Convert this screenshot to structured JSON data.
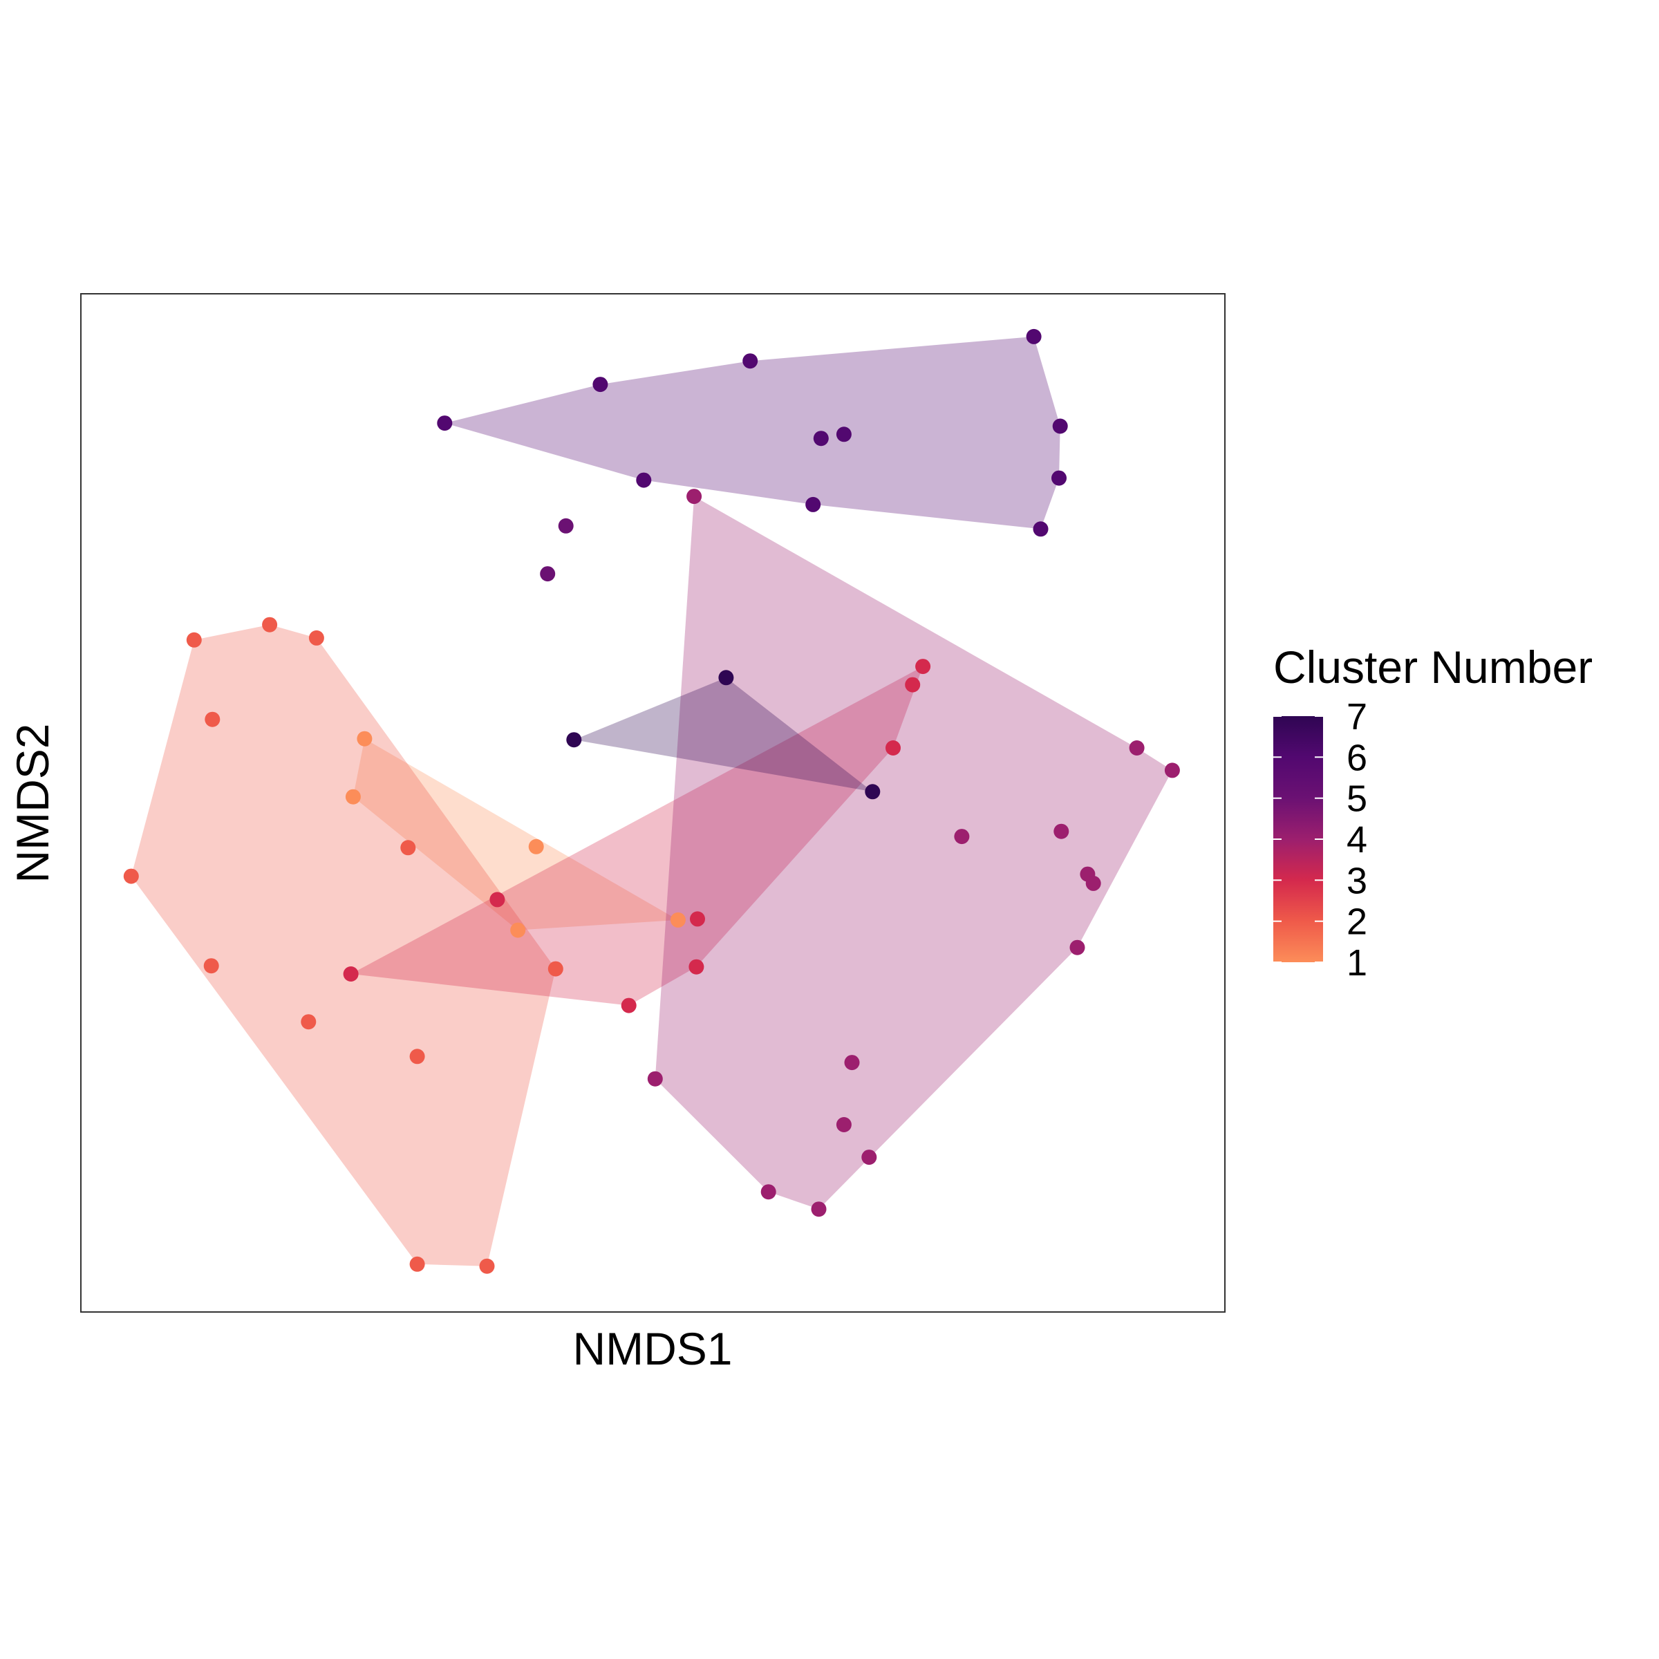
{
  "chart_data": {
    "type": "scatter",
    "title": "",
    "xlabel": "NMDS1",
    "ylabel": "NMDS2",
    "xlim": [
      0,
      1000
    ],
    "ylim": [
      0,
      1000
    ],
    "axis_ticks": false,
    "grid": false,
    "legend": {
      "title": "Cluster Number",
      "type": "colorbar",
      "position": "right",
      "range": [
        1,
        7
      ],
      "ticks": [
        "1",
        "2",
        "3",
        "4",
        "5",
        "6",
        "7"
      ]
    },
    "colors": {
      "1": "#fc8d59",
      "2": "#ef5a4a",
      "3": "#d4294d",
      "4": "#9c1f6e",
      "5": "#6b1173",
      "6": "#520870",
      "7": "#2f0653"
    },
    "hull_opacity": 0.3,
    "series": [
      {
        "name": "1",
        "hull": true,
        "points": [
          {
            "x": 248,
            "y": 563
          },
          {
            "x": 238,
            "y": 506
          },
          {
            "x": 398,
            "y": 457
          },
          {
            "x": 382,
            "y": 375
          },
          {
            "x": 522,
            "y": 385
          }
        ]
      },
      {
        "name": "2",
        "hull": true,
        "points": [
          {
            "x": 206,
            "y": 662
          },
          {
            "x": 165,
            "y": 675
          },
          {
            "x": 99,
            "y": 660
          },
          {
            "x": 115,
            "y": 582
          },
          {
            "x": 44,
            "y": 428
          },
          {
            "x": 114,
            "y": 340
          },
          {
            "x": 199,
            "y": 285
          },
          {
            "x": 294,
            "y": 251
          },
          {
            "x": 286,
            "y": 456
          },
          {
            "x": 415,
            "y": 337
          },
          {
            "x": 294,
            "y": 47
          },
          {
            "x": 355,
            "y": 45
          }
        ]
      },
      {
        "name": "3",
        "hull": true,
        "points": [
          {
            "x": 736,
            "y": 634
          },
          {
            "x": 727,
            "y": 616
          },
          {
            "x": 710,
            "y": 554
          },
          {
            "x": 539,
            "y": 386
          },
          {
            "x": 538,
            "y": 339
          },
          {
            "x": 479,
            "y": 301
          },
          {
            "x": 236,
            "y": 332
          },
          {
            "x": 364,
            "y": 405
          }
        ]
      },
      {
        "name": "4",
        "hull": true,
        "points": [
          {
            "x": 536,
            "y": 801
          },
          {
            "x": 923,
            "y": 554
          },
          {
            "x": 954,
            "y": 532
          },
          {
            "x": 770,
            "y": 467
          },
          {
            "x": 857,
            "y": 472
          },
          {
            "x": 880,
            "y": 430
          },
          {
            "x": 885,
            "y": 421
          },
          {
            "x": 871,
            "y": 358
          },
          {
            "x": 674,
            "y": 245
          },
          {
            "x": 667,
            "y": 184
          },
          {
            "x": 689,
            "y": 152
          },
          {
            "x": 601,
            "y": 118
          },
          {
            "x": 645,
            "y": 101
          },
          {
            "x": 502,
            "y": 229
          }
        ]
      },
      {
        "name": "5",
        "hull": false,
        "points": [
          {
            "x": 424,
            "y": 772
          },
          {
            "x": 408,
            "y": 725
          }
        ]
      },
      {
        "name": "6",
        "hull": true,
        "points": [
          {
            "x": 318,
            "y": 873
          },
          {
            "x": 454,
            "y": 911
          },
          {
            "x": 585,
            "y": 934
          },
          {
            "x": 833,
            "y": 958
          },
          {
            "x": 856,
            "y": 870
          },
          {
            "x": 855,
            "y": 819
          },
          {
            "x": 839,
            "y": 769
          },
          {
            "x": 640,
            "y": 793
          },
          {
            "x": 492,
            "y": 817
          },
          {
            "x": 647,
            "y": 858
          },
          {
            "x": 667,
            "y": 862
          }
        ]
      },
      {
        "name": "7",
        "hull": true,
        "points": [
          {
            "x": 564,
            "y": 623
          },
          {
            "x": 431,
            "y": 562
          },
          {
            "x": 692,
            "y": 511
          }
        ]
      }
    ]
  }
}
